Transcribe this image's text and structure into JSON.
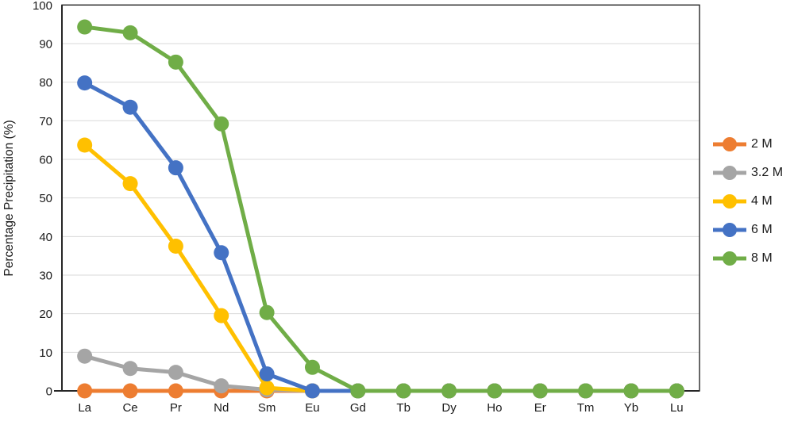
{
  "chart_data": {
    "type": "line",
    "title": "",
    "xlabel": "",
    "ylabel": "Percentage Precipitation (%)",
    "ylim": [
      0,
      100
    ],
    "yticks": [
      0,
      10,
      20,
      30,
      40,
      50,
      60,
      70,
      80,
      90,
      100
    ],
    "grid": "horizontal",
    "legend_position": "right",
    "categories": [
      "La",
      "Ce",
      "Pr",
      "Nd",
      "Sm",
      "Eu",
      "Gd",
      "Tb",
      "Dy",
      "Ho",
      "Er",
      "Tm",
      "Yb",
      "Lu"
    ],
    "series": [
      {
        "name": "2 M",
        "color": "#ED7D31",
        "values": [
          0,
          0,
          0,
          0,
          0,
          0,
          0,
          0,
          0,
          0,
          0,
          0,
          0,
          0
        ]
      },
      {
        "name": "3.2 M",
        "color": "#A5A5A5",
        "values": [
          9,
          5.8,
          4.8,
          1.3,
          0.3,
          0,
          0,
          0,
          0,
          0,
          0,
          0,
          0,
          0
        ]
      },
      {
        "name": "4 M",
        "color": "#FFC000",
        "values": [
          63.7,
          53.7,
          37.5,
          19.5,
          0.8,
          0,
          0,
          0,
          0,
          0,
          0,
          0,
          0,
          0
        ]
      },
      {
        "name": "6 M",
        "color": "#4472C4",
        "values": [
          79.8,
          73.5,
          57.8,
          35.8,
          4.4,
          0,
          0,
          0,
          0,
          0,
          0,
          0,
          0,
          0
        ]
      },
      {
        "name": "8 M",
        "color": "#70AD47",
        "values": [
          94.3,
          92.8,
          85.2,
          69.2,
          20.3,
          6.1,
          0,
          0,
          0,
          0,
          0,
          0,
          0,
          0
        ]
      }
    ],
    "colors": {
      "gridline": "#D9D9D9",
      "axis": "#262626",
      "text": "#1a1a1a",
      "background": "#FFFFFF"
    }
  }
}
